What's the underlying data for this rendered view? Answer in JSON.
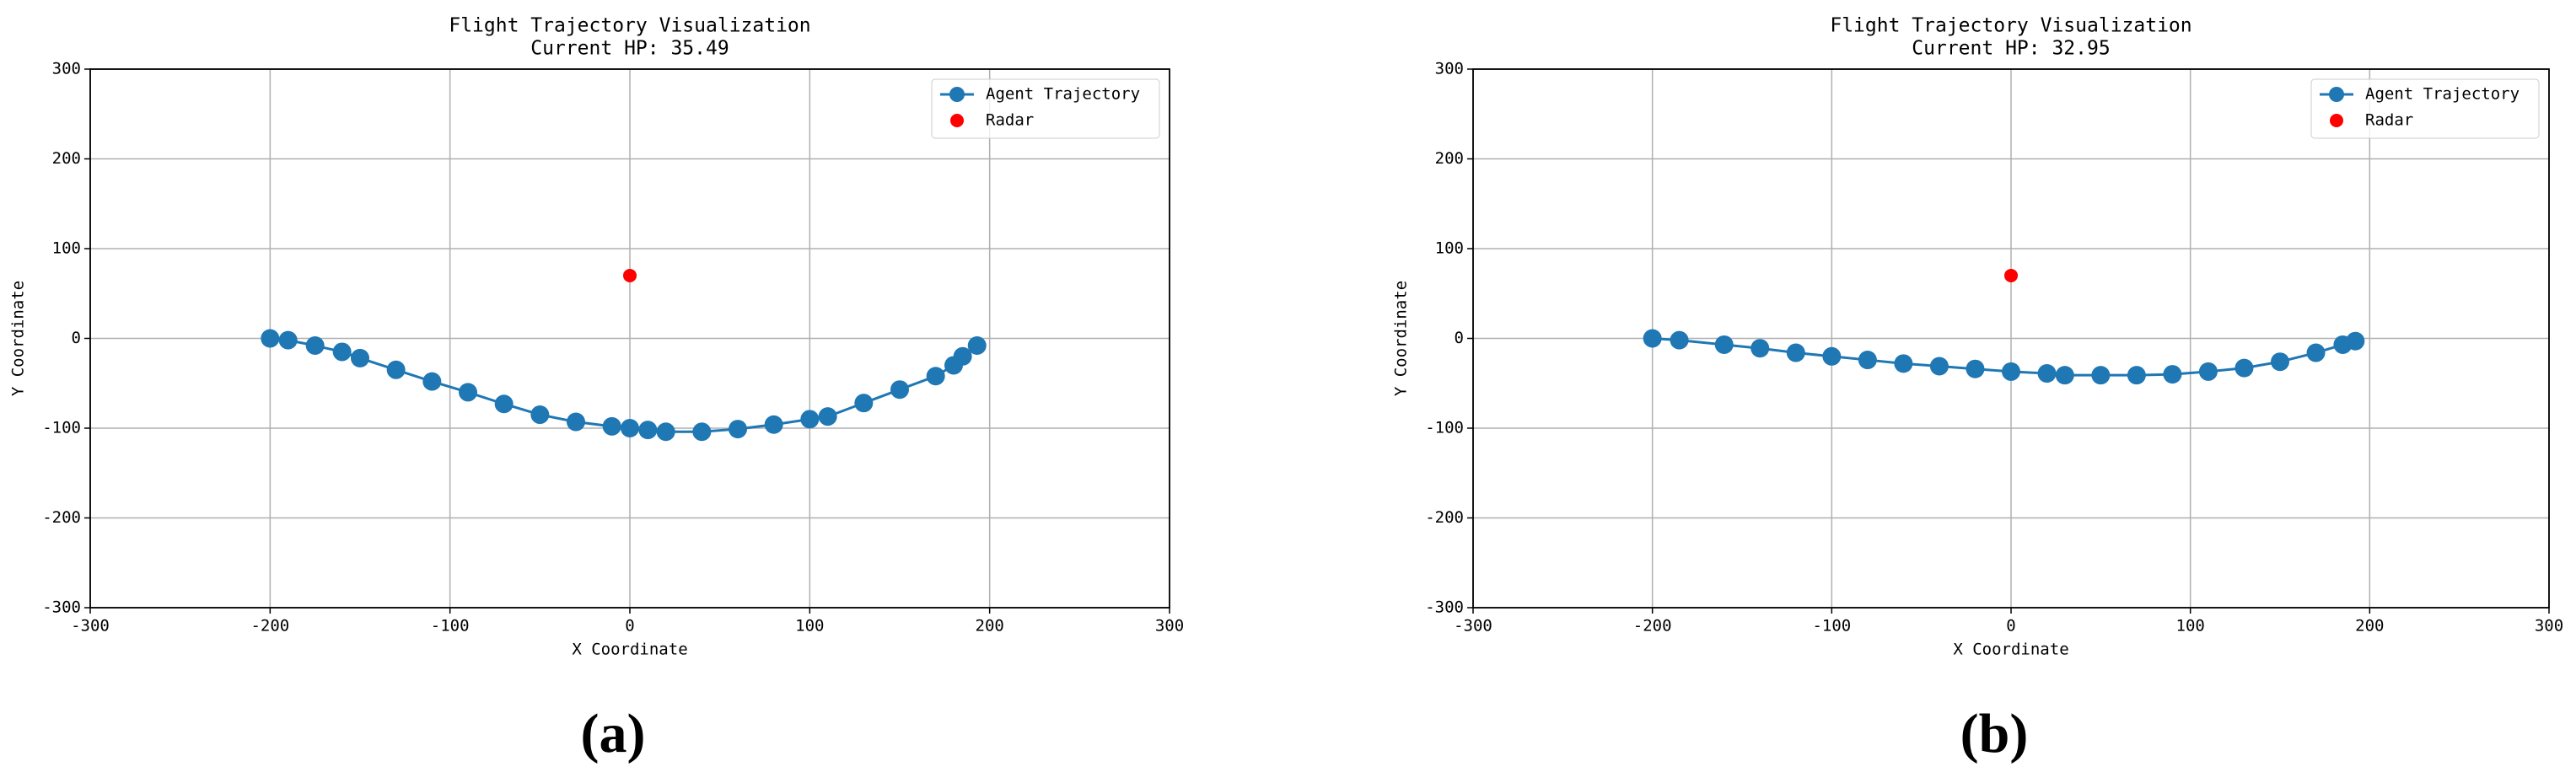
{
  "chart_data": [
    {
      "type": "line",
      "title": "Flight Trajectory Visualization",
      "subtitle": "Current HP: 35.49",
      "xlabel": "X Coordinate",
      "ylabel": "Y Coordinate",
      "panel_label": "(a)",
      "xlim": [
        -300,
        300
      ],
      "ylim": [
        -300,
        300
      ],
      "xticks": [
        -300,
        -200,
        -100,
        0,
        100,
        200,
        300
      ],
      "yticks": [
        -300,
        -200,
        -100,
        0,
        100,
        200,
        300
      ],
      "grid": true,
      "legend": "upper right",
      "series": [
        {
          "name": "Agent Trajectory",
          "color": "#1f77b4",
          "kind": "line",
          "x": [
            -200,
            -190,
            -175,
            -160,
            -150,
            -130,
            -110,
            -90,
            -70,
            -50,
            -30,
            -10,
            0,
            10,
            20,
            40,
            60,
            80,
            100,
            110,
            130,
            150,
            170,
            180,
            185,
            193
          ],
          "values": [
            0,
            -2,
            -8,
            -15,
            -22,
            -35,
            -48,
            -60,
            -73,
            -85,
            -93,
            -98,
            -100,
            -102,
            -104,
            -104,
            -101,
            -96,
            -90,
            -87,
            -72,
            -57,
            -42,
            -30,
            -20,
            -8
          ]
        },
        {
          "name": "Radar",
          "color": "#ff0000",
          "kind": "scatter",
          "x": [
            0
          ],
          "values": [
            70
          ]
        }
      ]
    },
    {
      "type": "line",
      "title": "Flight Trajectory Visualization",
      "subtitle": "Current HP: 32.95",
      "xlabel": "X Coordinate",
      "ylabel": "Y Coordinate",
      "panel_label": "(b)",
      "xlim": [
        -300,
        300
      ],
      "ylim": [
        -300,
        300
      ],
      "xticks": [
        -300,
        -200,
        -100,
        0,
        100,
        200,
        300
      ],
      "yticks": [
        -300,
        -200,
        -100,
        0,
        100,
        200,
        300
      ],
      "grid": true,
      "legend": "upper right",
      "series": [
        {
          "name": "Agent Trajectory",
          "color": "#1f77b4",
          "kind": "line",
          "x": [
            -200,
            -185,
            -160,
            -140,
            -120,
            -100,
            -80,
            -60,
            -40,
            -20,
            0,
            20,
            30,
            50,
            70,
            90,
            110,
            130,
            150,
            170,
            185,
            192
          ],
          "values": [
            0,
            -2,
            -7,
            -11,
            -16,
            -20,
            -24,
            -28,
            -31,
            -34,
            -37,
            -39,
            -41,
            -41,
            -41,
            -40,
            -37,
            -33,
            -26,
            -16,
            -7,
            -3
          ]
        },
        {
          "name": "Radar",
          "color": "#ff0000",
          "kind": "scatter",
          "x": [
            0
          ],
          "values": [
            70
          ]
        }
      ]
    }
  ]
}
